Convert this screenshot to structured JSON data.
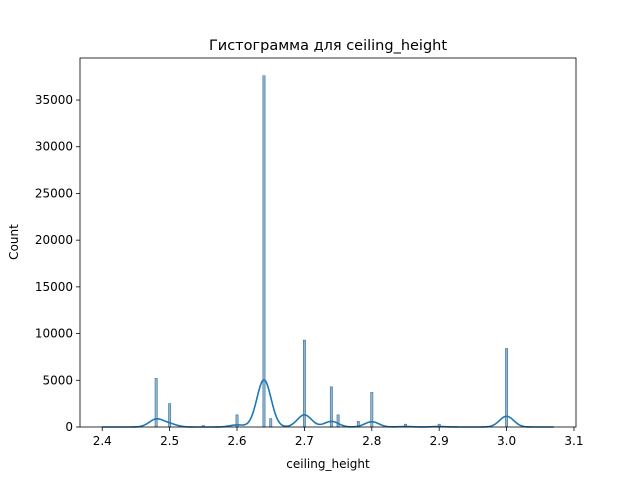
{
  "chart_data": {
    "type": "bar",
    "title": "Гистограмма для ceiling_height",
    "xlabel": "ceiling_height",
    "ylabel": "Count",
    "xlim": [
      2.367,
      3.103
    ],
    "ylim": [
      0,
      39500
    ],
    "xticks": [
      {
        "value": 2.4,
        "label": "2.4"
      },
      {
        "value": 2.5,
        "label": "2.5"
      },
      {
        "value": 2.6,
        "label": "2.6"
      },
      {
        "value": 2.7,
        "label": "2.7"
      },
      {
        "value": 2.8,
        "label": "2.8"
      },
      {
        "value": 2.9,
        "label": "2.9"
      },
      {
        "value": 3.0,
        "label": "3.0"
      },
      {
        "value": 3.1,
        "label": "3.1"
      }
    ],
    "yticks": [
      {
        "value": 0,
        "label": "0"
      },
      {
        "value": 5000,
        "label": "5000"
      },
      {
        "value": 10000,
        "label": "10000"
      },
      {
        "value": 15000,
        "label": "15000"
      },
      {
        "value": 20000,
        "label": "20000"
      },
      {
        "value": 25000,
        "label": "25000"
      },
      {
        "value": 30000,
        "label": "30000"
      },
      {
        "value": 35000,
        "label": "35000"
      }
    ],
    "bin_width": 0.00335,
    "bins": [
      {
        "x": 2.48,
        "count": 5200
      },
      {
        "x": 2.5,
        "count": 2500
      },
      {
        "x": 2.55,
        "count": 150
      },
      {
        "x": 2.6,
        "count": 1300
      },
      {
        "x": 2.64,
        "count": 37600
      },
      {
        "x": 2.65,
        "count": 900
      },
      {
        "x": 2.7,
        "count": 9300
      },
      {
        "x": 2.74,
        "count": 4300
      },
      {
        "x": 2.75,
        "count": 1300
      },
      {
        "x": 2.78,
        "count": 600
      },
      {
        "x": 2.8,
        "count": 3700
      },
      {
        "x": 2.85,
        "count": 300
      },
      {
        "x": 2.9,
        "count": 300
      },
      {
        "x": 3.0,
        "count": 8400
      }
    ],
    "kde_peaks": [
      {
        "x": 2.48,
        "y": 820
      },
      {
        "x": 2.5,
        "y": 320
      },
      {
        "x": 2.6,
        "y": 220
      },
      {
        "x": 2.64,
        "y": 5050
      },
      {
        "x": 2.7,
        "y": 1300
      },
      {
        "x": 2.74,
        "y": 600
      },
      {
        "x": 2.8,
        "y": 560
      },
      {
        "x": 2.85,
        "y": 50
      },
      {
        "x": 2.9,
        "y": 50
      },
      {
        "x": 3.0,
        "y": 1150
      }
    ],
    "kde_range": [
      2.4,
      3.07
    ],
    "colors": {
      "bar_fill": "#8fb5d3",
      "bar_edge": "#3b6f96",
      "kde_line": "#1f77b4"
    }
  }
}
